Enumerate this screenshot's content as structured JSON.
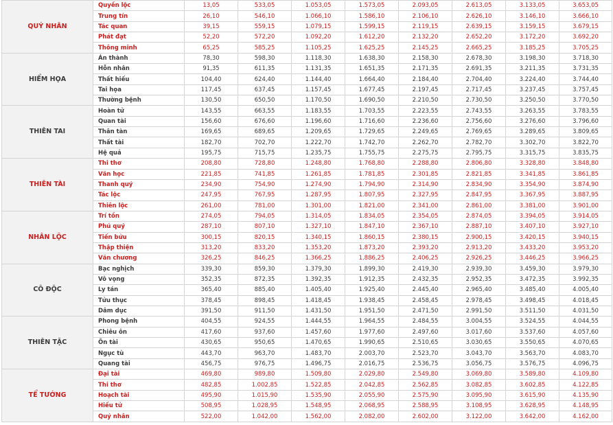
{
  "colors": {
    "good": "#c8201f",
    "bad": "#3a3a3a",
    "group_bg": "#f2f2f2",
    "border": "#d4d4d4"
  },
  "groups": [
    {
      "name": "QUÝ NHÂN",
      "tone": "red",
      "rows": [
        {
          "name": "Quyền lộc",
          "values": [
            "13,05",
            "533,05",
            "1.053,05",
            "1.573,05",
            "2.093,05",
            "2.613,05",
            "3.133,05",
            "3.653,05"
          ]
        },
        {
          "name": "Trung tín",
          "values": [
            "26,10",
            "546,10",
            "1.066,10",
            "1.586,10",
            "2.106,10",
            "2.626,10",
            "3.146,10",
            "3.666,10"
          ]
        },
        {
          "name": "Tác quan",
          "values": [
            "39,15",
            "559,15",
            "1.079,15",
            "1.599,15",
            "2.119,15",
            "2.639,15",
            "3.159,15",
            "3.679,15"
          ]
        },
        {
          "name": "Phát đạt",
          "values": [
            "52,20",
            "572,20",
            "1.092,20",
            "1.612,20",
            "2.132,20",
            "2.652,20",
            "3.172,20",
            "3.692,20"
          ]
        },
        {
          "name": "Thông minh",
          "values": [
            "65,25",
            "585,25",
            "1.105,25",
            "1.625,25",
            "2.145,25",
            "2.665,25",
            "3.185,25",
            "3.705,25"
          ]
        }
      ]
    },
    {
      "name": "HIỂM HỌA",
      "tone": "dark",
      "rows": [
        {
          "name": "Án thành",
          "values": [
            "78,30",
            "598,30",
            "1.118,30",
            "1.638,30",
            "2.158,30",
            "2.678,30",
            "3.198,30",
            "3.718,30"
          ]
        },
        {
          "name": "Hỗn nhân",
          "values": [
            "91,35",
            "611,35",
            "1.131,35",
            "1.651,35",
            "2.171,35",
            "2.691,35",
            "3.211,35",
            "3.731,35"
          ]
        },
        {
          "name": "Thất hiếu",
          "values": [
            "104,40",
            "624,40",
            "1.144,40",
            "1.664,40",
            "2.184,40",
            "2.704,40",
            "3.224,40",
            "3.744,40"
          ]
        },
        {
          "name": "Tai họa",
          "values": [
            "117,45",
            "637,45",
            "1.157,45",
            "1.677,45",
            "2.197,45",
            "2.717,45",
            "3.237,45",
            "3.757,45"
          ]
        },
        {
          "name": "Thường bệnh",
          "values": [
            "130,50",
            "650,50",
            "1.170,50",
            "1.690,50",
            "2.210,50",
            "2.730,50",
            "3.250,50",
            "3.770,50"
          ]
        }
      ]
    },
    {
      "name": "THIÊN TAI",
      "tone": "dark",
      "rows": [
        {
          "name": "Hoàn tử",
          "values": [
            "143,55",
            "663,55",
            "1.183,55",
            "1.703,55",
            "2.223,55",
            "2.743,55",
            "3.263,55",
            "3.783,55"
          ]
        },
        {
          "name": "Quan tài",
          "values": [
            "156,60",
            "676,60",
            "1.196,60",
            "1.716,60",
            "2.236,60",
            "2.756,60",
            "3.276,60",
            "3.796,60"
          ]
        },
        {
          "name": "Thân tàn",
          "values": [
            "169,65",
            "689,65",
            "1.209,65",
            "1.729,65",
            "2.249,65",
            "2.769,65",
            "3.289,65",
            "3.809,65"
          ]
        },
        {
          "name": "Thất tài",
          "values": [
            "182,70",
            "702,70",
            "1.222,70",
            "1.742,70",
            "2.262,70",
            "2.782,70",
            "3.302,70",
            "3.822,70"
          ]
        },
        {
          "name": "Hệ quả",
          "values": [
            "195,75",
            "715,75",
            "1.235,75",
            "1.755,75",
            "2.275,75",
            "2.795,75",
            "3.315,75",
            "3.835,75"
          ]
        }
      ]
    },
    {
      "name": "THIÊN TÀI",
      "tone": "red",
      "rows": [
        {
          "name": "Thi thơ",
          "values": [
            "208,80",
            "728,80",
            "1.248,80",
            "1.768,80",
            "2.288,80",
            "2.806,80",
            "3.328,80",
            "3.848,80"
          ]
        },
        {
          "name": "Văn học",
          "values": [
            "221,85",
            "741,85",
            "1.261,85",
            "1.781,85",
            "2.301,85",
            "2.821,85",
            "3.341,85",
            "3.861,85"
          ]
        },
        {
          "name": "Thanh quý",
          "values": [
            "234,90",
            "754,90",
            "1.274,90",
            "1.794,90",
            "2.314,90",
            "2.834,90",
            "3.354,90",
            "3.874,90"
          ]
        },
        {
          "name": "Tác lộc",
          "values": [
            "247,95",
            "767,95",
            "1.287,95",
            "1.807,95",
            "2.327,95",
            "2.847,95",
            "3.367,95",
            "3.887,95"
          ]
        },
        {
          "name": "Thiên lộc",
          "values": [
            "261,00",
            "781,00",
            "1.301,00",
            "1.821,00",
            "2.341,00",
            "2.861,00",
            "3.381,00",
            "3.901,00"
          ]
        }
      ]
    },
    {
      "name": "NHÂN LỘC",
      "tone": "red",
      "rows": [
        {
          "name": "Trí tồn",
          "values": [
            "274,05",
            "794,05",
            "1.314,05",
            "1.834,05",
            "2.354,05",
            "2.874,05",
            "3.394,05",
            "3.914,05"
          ]
        },
        {
          "name": "Phú quý",
          "values": [
            "287,10",
            "807,10",
            "1.327,10",
            "1.847,10",
            "2.367,10",
            "2.887,10",
            "3.407,10",
            "3.927,10"
          ]
        },
        {
          "name": "Tiến bửu",
          "values": [
            "300,15",
            "820,15",
            "1.340,15",
            "1.860,15",
            "2.380,15",
            "2.900,15",
            "3.420,15",
            "3.940,15"
          ]
        },
        {
          "name": "Thập thiện",
          "values": [
            "313,20",
            "833,20",
            "1.353,20",
            "1.873,20",
            "2.393,20",
            "2.913,20",
            "3.433,20",
            "3.953,20"
          ]
        },
        {
          "name": "Văn chương",
          "values": [
            "326,25",
            "846,25",
            "1.366,25",
            "1.886,25",
            "2.406,25",
            "2.926,25",
            "3.446,25",
            "3.966,25"
          ]
        }
      ]
    },
    {
      "name": "CÔ ĐỘC",
      "tone": "dark",
      "rows": [
        {
          "name": "Bạc nghịch",
          "values": [
            "339,30",
            "859,30",
            "1.379,30",
            "1.899,30",
            "2.419,30",
            "2.939,30",
            "3.459,30",
            "3.979,30"
          ]
        },
        {
          "name": "Vô vọng",
          "values": [
            "352,35",
            "872,35",
            "1.392,35",
            "1.912,35",
            "2.432,35",
            "2.952,35",
            "3.472,35",
            "3.992,35"
          ]
        },
        {
          "name": "Ly tán",
          "values": [
            "365,40",
            "885,40",
            "1.405,40",
            "1.925,40",
            "2.445,40",
            "2.965,40",
            "3.485,40",
            "4.005,40"
          ]
        },
        {
          "name": "Tửu thục",
          "values": [
            "378,45",
            "898,45",
            "1.418,45",
            "1.938,45",
            "2.458,45",
            "2.978,45",
            "3.498,45",
            "4.018,45"
          ]
        },
        {
          "name": "Dâm dục",
          "values": [
            "391,50",
            "911,50",
            "1.431,50",
            "1.951,50",
            "2.471,50",
            "2.991,50",
            "3.511,50",
            "4.031,50"
          ]
        }
      ]
    },
    {
      "name": "THIÊN TẶC",
      "tone": "dark",
      "rows": [
        {
          "name": "Phong bệnh",
          "values": [
            "404,55",
            "924,55",
            "1.444,55",
            "1.964,55",
            "2.484,55",
            "3.004,55",
            "3.524,55",
            "4.044,55"
          ]
        },
        {
          "name": "Chiêu ôn",
          "values": [
            "417,60",
            "937,60",
            "1.457,60",
            "1.977,60",
            "2.497,60",
            "3.017,60",
            "3.537,60",
            "4.057,60"
          ]
        },
        {
          "name": "Ôn tài",
          "values": [
            "430,65",
            "950,65",
            "1.470,65",
            "1.990,65",
            "2.510,65",
            "3.030,65",
            "3.550,65",
            "4.070,65"
          ]
        },
        {
          "name": "Ngục tù",
          "values": [
            "443,70",
            "963,70",
            "1.483,70",
            "2.003,70",
            "2.523,70",
            "3.043,70",
            "3.563,70",
            "4.083,70"
          ]
        },
        {
          "name": "Quang tài",
          "values": [
            "456,75",
            "976,75",
            "1.496,75",
            "2.016,75",
            "2.536,75",
            "3.056,75",
            "3.576,75",
            "4.096,75"
          ]
        }
      ]
    },
    {
      "name": "TỂ TƯỚNG",
      "tone": "red",
      "rows": [
        {
          "name": "Đại tài",
          "values": [
            "469,80",
            "989,80",
            "1.509,80",
            "2.029,80",
            "2.549,80",
            "3.069,80",
            "3.589,80",
            "4.109,80"
          ]
        },
        {
          "name": "Thi thơ",
          "values": [
            "482,85",
            "1.002,85",
            "1.522,85",
            "2.042,85",
            "2.562,85",
            "3.082,85",
            "3.602,85",
            "4.122,85"
          ]
        },
        {
          "name": "Hoạch tài",
          "values": [
            "495,90",
            "1.015,90",
            "1.535,90",
            "2.055,90",
            "2.575,90",
            "3.095,90",
            "3.615,90",
            "4.135,90"
          ]
        },
        {
          "name": "Hiếu tử",
          "values": [
            "508,95",
            "1.028,95",
            "1.548,95",
            "2.068,95",
            "2.588,95",
            "3.108,95",
            "3.628,95",
            "4.148,95"
          ]
        },
        {
          "name": "Quý nhân",
          "values": [
            "522,00",
            "1.042,00",
            "1.562,00",
            "2.082,00",
            "2.602,00",
            "3.122,00",
            "3.642,00",
            "4.162,00"
          ]
        }
      ]
    }
  ]
}
